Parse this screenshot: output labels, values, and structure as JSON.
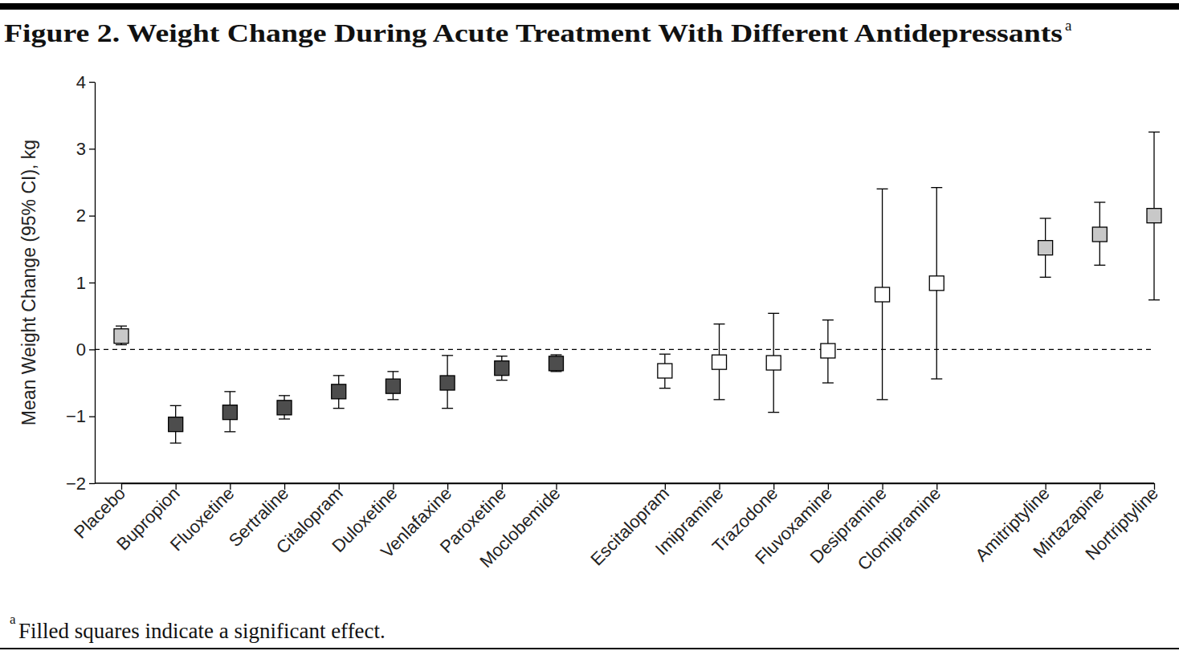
{
  "chart_data": {
    "type": "errorbar",
    "title": "Figure 2. Weight Change During Acute Treatment With Different Antidepressants",
    "title_marker": "a",
    "y_label": "Mean Weight Change (95% CI), kg",
    "footnote": {
      "marker": "a",
      "text": "Filled squares indicate a significant effect."
    },
    "categories": [
      "Placebo",
      "Bupropion",
      "Fluoxetine",
      "Sertraline",
      "Citalopram",
      "Duloxetine",
      "Venlafaxine",
      "Paroxetine",
      "Moclobemide",
      null,
      "Escitalopram",
      "Imipramine",
      "Trazodone",
      "Fluvoxamine",
      "Desipramine",
      "Clomipramine",
      null,
      "Amitriptyline",
      "Mirtazapine",
      "Nortriptyline"
    ],
    "values": [
      0.2,
      -1.12,
      -0.94,
      -0.87,
      -0.63,
      -0.55,
      -0.5,
      -0.28,
      -0.21,
      null,
      -0.32,
      -0.19,
      -0.2,
      -0.02,
      0.82,
      0.99,
      null,
      1.52,
      1.72,
      2.0
    ],
    "ci_low": [
      0.07,
      -1.4,
      -1.23,
      -1.04,
      -0.88,
      -0.75,
      -0.88,
      -0.46,
      -0.33,
      null,
      -0.58,
      -0.75,
      -0.94,
      -0.5,
      -0.75,
      -0.44,
      null,
      1.08,
      1.26,
      0.74
    ],
    "ci_high": [
      0.35,
      -0.84,
      -0.63,
      -0.69,
      -0.39,
      -0.33,
      -0.09,
      -0.1,
      -0.08,
      null,
      -0.07,
      0.38,
      0.54,
      0.44,
      2.4,
      2.42,
      null,
      1.96,
      2.2,
      3.25
    ],
    "colors": [
      "#c8c8c8",
      "#4d4d4d",
      "#4d4d4d",
      "#4d4d4d",
      "#4d4d4d",
      "#4d4d4d",
      "#4d4d4d",
      "#4d4d4d",
      "#4d4d4d",
      null,
      "#ffffff",
      "#ffffff",
      "#ffffff",
      "#ffffff",
      "#ffffff",
      "#ffffff",
      null,
      "#c8c8c8",
      "#c8c8c8",
      "#c8c8c8"
    ],
    "marker": "square",
    "reference_line": 0,
    "ylim": [
      -2,
      4
    ],
    "yticks": [
      {
        "value": -2,
        "label": "−2"
      },
      {
        "value": -1,
        "label": "−1"
      },
      0,
      1,
      2,
      3,
      4
    ],
    "grid": false
  }
}
